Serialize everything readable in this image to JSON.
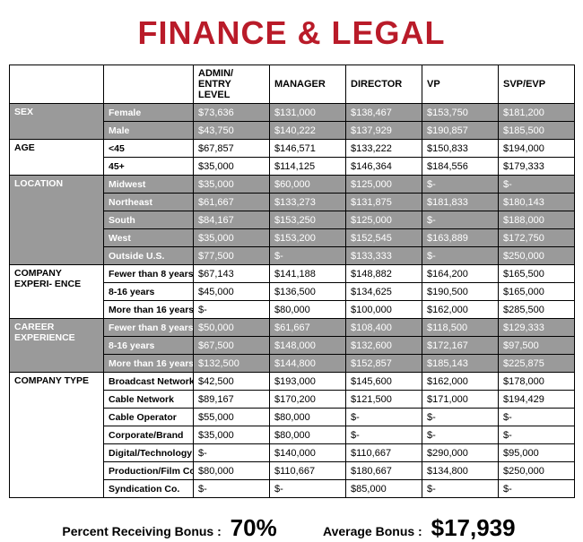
{
  "title": "FINANCE & LEGAL",
  "columns": [
    "ADMIN/\nENTRY LEVEL",
    "MANAGER",
    "DIRECTOR",
    "VP",
    "SVP/EVP"
  ],
  "sections": [
    {
      "name": "SEX",
      "shaded": true,
      "rows": [
        {
          "label": "Female",
          "v": [
            "$73,636",
            "$131,000",
            "$138,467",
            "$153,750",
            "$181,200"
          ]
        },
        {
          "label": "Male",
          "v": [
            "$43,750",
            "$140,222",
            "$137,929",
            "$190,857",
            "$185,500"
          ]
        }
      ]
    },
    {
      "name": "AGE",
      "shaded": false,
      "rows": [
        {
          "label": "<45",
          "v": [
            "$67,857",
            "$146,571",
            "$133,222",
            "$150,833",
            "$194,000"
          ]
        },
        {
          "label": "45+",
          "v": [
            "$35,000",
            "$114,125",
            "$146,364",
            "$184,556",
            "$179,333"
          ]
        }
      ]
    },
    {
      "name": "LOCATION",
      "shaded": true,
      "rows": [
        {
          "label": "Midwest",
          "v": [
            "$35,000",
            "$60,000",
            "$125,000",
            "$-",
            "$-"
          ]
        },
        {
          "label": "Northeast",
          "v": [
            "$61,667",
            "$133,273",
            "$131,875",
            "$181,833",
            "$180,143"
          ]
        },
        {
          "label": "South",
          "v": [
            "$84,167",
            "$153,250",
            "$125,000",
            "$-",
            "$188,000"
          ]
        },
        {
          "label": "West",
          "v": [
            "$35,000",
            "$153,200",
            "$152,545",
            "$163,889",
            "$172,750"
          ]
        },
        {
          "label": "Outside U.S.",
          "v": [
            "$77,500",
            "$-",
            "$133,333",
            "$-",
            "$250,000"
          ]
        }
      ]
    },
    {
      "name": "COMPANY EXPERI-\nENCE",
      "shaded": false,
      "rows": [
        {
          "label": "Fewer than 8 years",
          "v": [
            "$67,143",
            "$141,188",
            "$148,882",
            "$164,200",
            "$165,500"
          ]
        },
        {
          "label": "8-16 years",
          "v": [
            "$45,000",
            "$136,500",
            "$134,625",
            "$190,500",
            "$165,000"
          ]
        },
        {
          "label": "More than 16 years",
          "v": [
            "$-",
            "$80,000",
            "$100,000",
            "$162,000",
            "$285,500"
          ]
        }
      ]
    },
    {
      "name": "CAREER EXPERIENCE",
      "shaded": true,
      "rows": [
        {
          "label": "Fewer than 8 years",
          "v": [
            "$50,000",
            "$61,667",
            "$108,400",
            "$118,500",
            "$129,333"
          ]
        },
        {
          "label": "8-16 years",
          "v": [
            "$67,500",
            "$148,000",
            "$132,600",
            "$172,167",
            "$97,500"
          ]
        },
        {
          "label": "More than 16 years",
          "v": [
            "$132,500",
            "$144,800",
            "$152,857",
            "$185,143",
            "$225,875"
          ]
        }
      ]
    },
    {
      "name": "COMPANY TYPE",
      "shaded": false,
      "rows": [
        {
          "label": "Broadcast Network",
          "v": [
            "$42,500",
            "$193,000",
            "$145,600",
            "$162,000",
            "$178,000"
          ]
        },
        {
          "label": "Cable Network",
          "v": [
            "$89,167",
            "$170,200",
            "$121,500",
            "$171,000",
            "$194,429"
          ]
        },
        {
          "label": "Cable Operator",
          "v": [
            "$55,000",
            "$80,000",
            "$-",
            "$-",
            "$-"
          ]
        },
        {
          "label": "Corporate/Brand",
          "v": [
            "$35,000",
            "$80,000",
            "$-",
            "$-",
            "$-"
          ]
        },
        {
          "label": "Digital/Technology",
          "v": [
            "$-",
            "$140,000",
            "$110,667",
            "$290,000",
            "$95,000"
          ]
        },
        {
          "label": "Production/Film Co.",
          "v": [
            "$80,000",
            "$110,667",
            "$180,667",
            "$134,800",
            "$250,000"
          ]
        },
        {
          "label": "Syndication Co.",
          "v": [
            "$-",
            "$-",
            "$85,000",
            "$-",
            "$-"
          ]
        }
      ]
    }
  ],
  "bonus": {
    "percent_label": "Percent Receiving Bonus :",
    "percent_value": "70%",
    "average_label": "Average Bonus :",
    "average_value": "$17,939"
  },
  "colors": {
    "title": "#b91b29",
    "shaded_bg": "#9a9a9a",
    "shaded_text": "#ffffff",
    "border": "#000000"
  }
}
